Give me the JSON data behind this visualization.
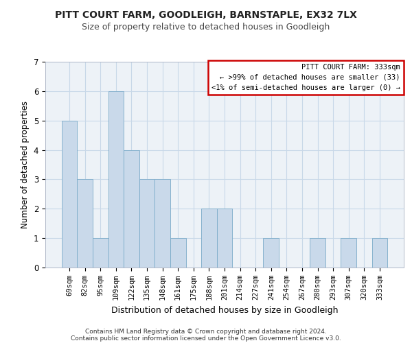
{
  "title": "PITT COURT FARM, GOODLEIGH, BARNSTAPLE, EX32 7LX",
  "subtitle": "Size of property relative to detached houses in Goodleigh",
  "xlabel": "Distribution of detached houses by size in Goodleigh",
  "ylabel": "Number of detached properties",
  "categories": [
    "69sqm",
    "82sqm",
    "95sqm",
    "109sqm",
    "122sqm",
    "135sqm",
    "148sqm",
    "161sqm",
    "175sqm",
    "188sqm",
    "201sqm",
    "214sqm",
    "227sqm",
    "241sqm",
    "254sqm",
    "267sqm",
    "280sqm",
    "293sqm",
    "307sqm",
    "320sqm",
    "333sqm"
  ],
  "values": [
    5,
    3,
    1,
    6,
    4,
    3,
    3,
    1,
    0,
    2,
    2,
    0,
    0,
    1,
    0,
    0,
    1,
    0,
    1,
    0,
    1
  ],
  "bar_color": "#c9d9ea",
  "bar_edge_color": "#7aaac8",
  "annotation_box_edge_color": "#cc0000",
  "annotation_text": "PITT COURT FARM: 333sqm\n← >99% of detached houses are smaller (33)\n<1% of semi-detached houses are larger (0) →",
  "annotation_fontsize": 7.5,
  "ylim": [
    0,
    7
  ],
  "yticks": [
    0,
    1,
    2,
    3,
    4,
    5,
    6,
    7
  ],
  "grid_color": "#c8d8e8",
  "background_color": "#edf2f7",
  "footer_line1": "Contains HM Land Registry data © Crown copyright and database right 2024.",
  "footer_line2": "Contains public sector information licensed under the Open Government Licence v3.0.",
  "title_fontsize": 10,
  "subtitle_fontsize": 9,
  "xlabel_fontsize": 9,
  "ylabel_fontsize": 8.5,
  "tick_fontsize": 7.5,
  "footer_fontsize": 6.5
}
